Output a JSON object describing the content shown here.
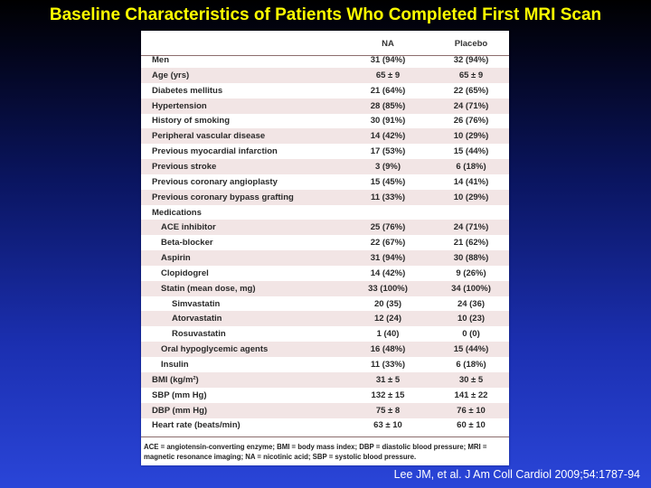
{
  "slide": {
    "title": "Baseline Characteristics of Patients Who Completed First MRI Scan",
    "citation": "Lee JM, et al. J Am Coll Cardiol 2009;54:1787-94"
  },
  "table": {
    "columns": [
      "",
      "NA",
      "Placebo"
    ],
    "rows": [
      {
        "label": "Men",
        "na": "31 (94%)",
        "placebo": "32 (94%)",
        "indent": 0
      },
      {
        "label": "Age (yrs)",
        "na": "65 ± 9",
        "placebo": "65 ± 9",
        "indent": 0
      },
      {
        "label": "Diabetes mellitus",
        "na": "21 (64%)",
        "placebo": "22 (65%)",
        "indent": 0
      },
      {
        "label": "Hypertension",
        "na": "28 (85%)",
        "placebo": "24 (71%)",
        "indent": 0
      },
      {
        "label": "History of smoking",
        "na": "30 (91%)",
        "placebo": "26 (76%)",
        "indent": 0
      },
      {
        "label": "Peripheral vascular disease",
        "na": "14 (42%)",
        "placebo": "10 (29%)",
        "indent": 0
      },
      {
        "label": "Previous myocardial infarction",
        "na": "17 (53%)",
        "placebo": "15 (44%)",
        "indent": 0
      },
      {
        "label": "Previous stroke",
        "na": "3 (9%)",
        "placebo": "6 (18%)",
        "indent": 0
      },
      {
        "label": "Previous coronary angioplasty",
        "na": "15 (45%)",
        "placebo": "14 (41%)",
        "indent": 0
      },
      {
        "label": "Previous coronary bypass grafting",
        "na": "11 (33%)",
        "placebo": "10 (29%)",
        "indent": 0
      },
      {
        "label": "Medications",
        "na": "",
        "placebo": "",
        "indent": 0
      },
      {
        "label": "ACE inhibitor",
        "na": "25 (76%)",
        "placebo": "24 (71%)",
        "indent": 1
      },
      {
        "label": "Beta-blocker",
        "na": "22 (67%)",
        "placebo": "21 (62%)",
        "indent": 1
      },
      {
        "label": "Aspirin",
        "na": "31 (94%)",
        "placebo": "30 (88%)",
        "indent": 1
      },
      {
        "label": "Clopidogrel",
        "na": "14 (42%)",
        "placebo": "9 (26%)",
        "indent": 1
      },
      {
        "label": "Statin (mean dose, mg)",
        "na": "33 (100%)",
        "placebo": "34 (100%)",
        "indent": 1
      },
      {
        "label": "Simvastatin",
        "na": "20 (35)",
        "placebo": "24 (36)",
        "indent": 2
      },
      {
        "label": "Atorvastatin",
        "na": "12 (24)",
        "placebo": "10 (23)",
        "indent": 2
      },
      {
        "label": "Rosuvastatin",
        "na": "1 (40)",
        "placebo": "0 (0)",
        "indent": 2
      },
      {
        "label": "Oral hypoglycemic agents",
        "na": "16 (48%)",
        "placebo": "15 (44%)",
        "indent": 1
      },
      {
        "label": "Insulin",
        "na": "11 (33%)",
        "placebo": "6 (18%)",
        "indent": 1
      },
      {
        "label": "BMI (kg/m²)",
        "na": "31 ± 5",
        "placebo": "30 ± 5",
        "indent": 0
      },
      {
        "label": "SBP (mm Hg)",
        "na": "132 ± 15",
        "placebo": "141 ± 22",
        "indent": 0
      },
      {
        "label": "DBP (mm Hg)",
        "na": "75 ± 8",
        "placebo": "76 ± 10",
        "indent": 0
      },
      {
        "label": "Heart rate (beats/min)",
        "na": "63 ± 10",
        "placebo": "60 ± 10",
        "indent": 0
      }
    ],
    "footnote": "ACE = angiotensin-converting enzyme; BMI = body mass index; DBP = diastolic blood pressure; MRI = magnetic resonance imaging; NA = nicotinic acid; SBP = systolic blood pressure."
  }
}
